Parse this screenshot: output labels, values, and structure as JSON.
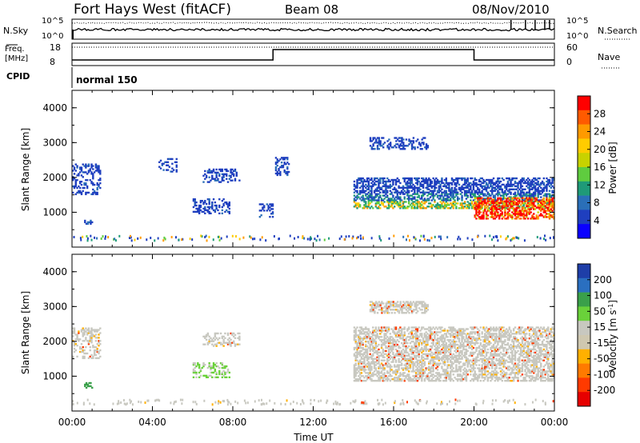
{
  "header": {
    "site": "Fort Hays West (fitACF)",
    "beam": "Beam 08",
    "date": "08/Nov/2010"
  },
  "panels": {
    "nsky": {
      "left_label": "N.Sky",
      "right_label": "N.Search",
      "left_ticks": [
        "10^5",
        "10^0"
      ],
      "right_ticks": [
        "10^5",
        "10^0"
      ]
    },
    "freq": {
      "left_label": "Freq.",
      "left_units": "[MHz]",
      "right_label": "Nave",
      "left_ticks": [
        "18",
        "8"
      ],
      "right_ticks": [
        "60",
        "0"
      ],
      "values": [
        {
          "x": "00:00",
          "level": "low"
        },
        {
          "x": "10:00",
          "level": "high"
        },
        {
          "x": "20:00",
          "level": "low"
        }
      ]
    },
    "cpid": {
      "label": "CPID",
      "program": "normal 150"
    }
  },
  "colorbars": {
    "power": {
      "title": "Power [dB]",
      "ticks": [
        "28",
        "24",
        "20",
        "16",
        "12",
        "8",
        "4"
      ],
      "colors": [
        "#ff0000",
        "#ff5a00",
        "#ff9a00",
        "#ffcc00",
        "#c8d200",
        "#5fcc3f",
        "#1f9a78",
        "#2a6fb8",
        "#1f3fbf",
        "#0a00ff"
      ]
    },
    "velocity": {
      "title": "Velocity [m s",
      "title_sup": "-1",
      "title_end": "]",
      "ticks": [
        "200",
        "100",
        "50",
        "15",
        "-15",
        "-50",
        "-100",
        "-200"
      ],
      "colors": [
        "#1e3ea8",
        "#2a6fc0",
        "#3aa04a",
        "#6ad13a",
        "#c8c8c0",
        "#cfc8b0",
        "#ffb000",
        "#ff7a00",
        "#ff3a00",
        "#e60000"
      ]
    }
  },
  "chart_data": [
    {
      "type": "heatmap",
      "title": "Power",
      "ylabel": "Slant Range [km]",
      "xlabel": "Time UT",
      "x_ticks": [
        "00:00",
        "04:00",
        "08:00",
        "12:00",
        "16:00",
        "20:00",
        "00:00"
      ],
      "y_ticks": [
        "1000",
        "2000",
        "3000",
        "4000"
      ],
      "ylim": [
        0,
        4500
      ],
      "xlim": [
        "00:00",
        "24:00"
      ],
      "colorbar": "power",
      "regions": [
        {
          "t0": 0.0,
          "t1": 1.4,
          "r0": 1500,
          "r1": 2400,
          "level": "weak"
        },
        {
          "t0": 0.6,
          "t1": 1.0,
          "r0": 650,
          "r1": 800,
          "level": "weak"
        },
        {
          "t0": 4.3,
          "t1": 5.2,
          "r0": 2150,
          "r1": 2550,
          "level": "weak"
        },
        {
          "t0": 6.0,
          "t1": 7.8,
          "r0": 950,
          "r1": 1400,
          "level": "weak"
        },
        {
          "t0": 6.5,
          "t1": 8.3,
          "r0": 1850,
          "r1": 2250,
          "level": "weak"
        },
        {
          "t0": 9.3,
          "t1": 10.0,
          "r0": 850,
          "r1": 1250,
          "level": "weak"
        },
        {
          "t0": 10.1,
          "t1": 10.8,
          "r0": 2050,
          "r1": 2550,
          "level": "weak"
        },
        {
          "t0": 14.0,
          "t1": 24.0,
          "r0": 1100,
          "r1": 2000,
          "level": "mixed"
        },
        {
          "t0": 14.8,
          "t1": 17.7,
          "r0": 2800,
          "r1": 3150,
          "level": "weak"
        },
        {
          "t0": 20.0,
          "t1": 24.0,
          "r0": 800,
          "r1": 1400,
          "level": "strong"
        }
      ]
    },
    {
      "type": "heatmap",
      "title": "Velocity",
      "ylabel": "Slant Range [km]",
      "xlabel": "Time UT",
      "x_ticks": [
        "00:00",
        "04:00",
        "08:00",
        "12:00",
        "16:00",
        "20:00",
        "00:00"
      ],
      "y_ticks": [
        "1000",
        "2000",
        "3000",
        "4000"
      ],
      "ylim": [
        0,
        4500
      ],
      "xlim": [
        "00:00",
        "24:00"
      ],
      "colorbar": "velocity",
      "regions": [
        {
          "t0": 0.0,
          "t1": 1.4,
          "r0": 1500,
          "r1": 2400,
          "level": "near-zero"
        },
        {
          "t0": 0.6,
          "t1": 1.0,
          "r0": 650,
          "r1": 800,
          "level": "+50"
        },
        {
          "t0": 6.0,
          "t1": 7.8,
          "r0": 950,
          "r1": 1400,
          "level": "+15..+50"
        },
        {
          "t0": 6.5,
          "t1": 8.3,
          "r0": 1850,
          "r1": 2250,
          "level": "near-zero"
        },
        {
          "t0": 14.0,
          "t1": 24.0,
          "r0": 850,
          "r1": 2400,
          "level": "near-zero"
        },
        {
          "t0": 14.8,
          "t1": 17.7,
          "r0": 2800,
          "r1": 3150,
          "level": "near-zero"
        }
      ]
    }
  ]
}
